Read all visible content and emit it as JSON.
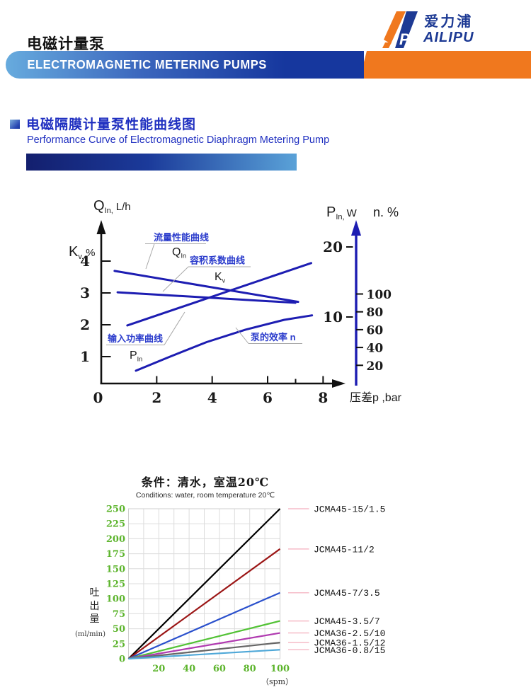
{
  "header": {
    "title_zh": "电磁计量泵",
    "banner_text": "ELECTROMAGNETIC METERING PUMPS",
    "logo_zh": "爱力浦",
    "logo_en": "AILIPU",
    "colors": {
      "navy": "#16379e",
      "light_blue": "#67abde",
      "orange": "#f0781e",
      "logo_blue": "#1d3a94"
    }
  },
  "section": {
    "title_zh": "电磁隔膜计量泵性能曲线图",
    "title_en": "Performance Curve of Electromagnetic Diaphragm Metering Pump",
    "accent_color": "#1f2fc0"
  },
  "chart_data": [
    {
      "type": "line",
      "description": "Performance curves of electromagnetic diaphragm metering pump vs differential pressure",
      "line_color": "#1d1db2",
      "x_axis": {
        "label": "压差p ,bar",
        "ticks": [
          0,
          2,
          4,
          6,
          8
        ],
        "range": [
          0,
          8.8
        ]
      },
      "left_axis": {
        "label_flow": {
          "sym": "Q",
          "sub": "In,",
          "unit": "L/h"
        },
        "label_kv": {
          "sym": "K",
          "sub": "v.",
          "unit": "%"
        },
        "ticks": [
          4,
          3,
          2,
          1
        ]
      },
      "right_axis_power": {
        "sym": "P",
        "sub": "In,",
        "unit": "W",
        "ticks": [
          20,
          10
        ]
      },
      "right_axis_eff": {
        "label": "n. %",
        "ticks": [
          100,
          80,
          60,
          40,
          20
        ]
      },
      "series": [
        {
          "id": "flow",
          "annotation": "流量性能曲线",
          "sym": "Q",
          "sub": "In",
          "scale": "left",
          "points": [
            [
              0.48,
              3.69
            ],
            [
              7.1,
              2.72
            ]
          ]
        },
        {
          "id": "kv",
          "annotation": "容积系数曲线",
          "sym": "K",
          "sub": "v",
          "scale": "left",
          "points": [
            [
              0.59,
              3.02
            ],
            [
              7.0,
              2.69
            ]
          ]
        },
        {
          "id": "power",
          "annotation": "输入功率曲线",
          "sym": "P",
          "sub": "In",
          "scale": "power",
          "points": [
            [
              0.94,
              8.8
            ],
            [
              7.57,
              17.7
            ]
          ]
        },
        {
          "id": "efficiency",
          "annotation": "泵的效率 n",
          "sym": "",
          "sub": "",
          "scale": "efficiency",
          "points": [
            [
              1.25,
              14
            ],
            [
              2.5,
              30
            ],
            [
              3.8,
              46
            ],
            [
              5.2,
              60
            ],
            [
              6.6,
              71
            ],
            [
              7.6,
              76
            ]
          ]
        }
      ]
    },
    {
      "type": "line",
      "condition_zh": "条件：清水，室温20℃",
      "condition_en": "Conditions: water, room temperature 20℃",
      "ylabel": "吐出量",
      "ylabel_unit": "(ml/min)",
      "xlabel": "（spm）",
      "xlim": [
        0,
        100
      ],
      "ylim": [
        0,
        250
      ],
      "xticks": [
        20,
        40,
        60,
        80,
        100
      ],
      "yticks": [
        0,
        25,
        50,
        75,
        100,
        125,
        150,
        175,
        200,
        225,
        250
      ],
      "grid": {
        "x_step": 10,
        "y_step": 25,
        "color": "#dcdcdc"
      },
      "tick_color": "#5cb42c",
      "legend_leader_color": "#f6bcc8",
      "series": [
        {
          "name": "JCMA45-15/1.5",
          "color": "#000000",
          "points": [
            [
              0,
              0
            ],
            [
              100,
              250
            ]
          ]
        },
        {
          "name": "JCMA45-11/2",
          "color": "#9b1515",
          "points": [
            [
              0,
              0
            ],
            [
              100,
              183
            ]
          ]
        },
        {
          "name": "JCMA45-7/3.5",
          "color": "#2a50cc",
          "points": [
            [
              0,
              0
            ],
            [
              100,
              110
            ]
          ]
        },
        {
          "name": "JCMA45-3.5/7",
          "color": "#52c235",
          "points": [
            [
              0,
              0
            ],
            [
              100,
              63
            ]
          ]
        },
        {
          "name": "JCMA36-2.5/10",
          "color": "#b03ab0",
          "points": [
            [
              0,
              0
            ],
            [
              100,
              43
            ]
          ]
        },
        {
          "name": "JCMA36-1.5/12",
          "color": "#666666",
          "points": [
            [
              0,
              0
            ],
            [
              100,
              27
            ]
          ]
        },
        {
          "name": "JCMA36-0.8/15",
          "color": "#4fa8d8",
          "points": [
            [
              0,
              0
            ],
            [
              100,
              15
            ]
          ]
        }
      ]
    }
  ]
}
